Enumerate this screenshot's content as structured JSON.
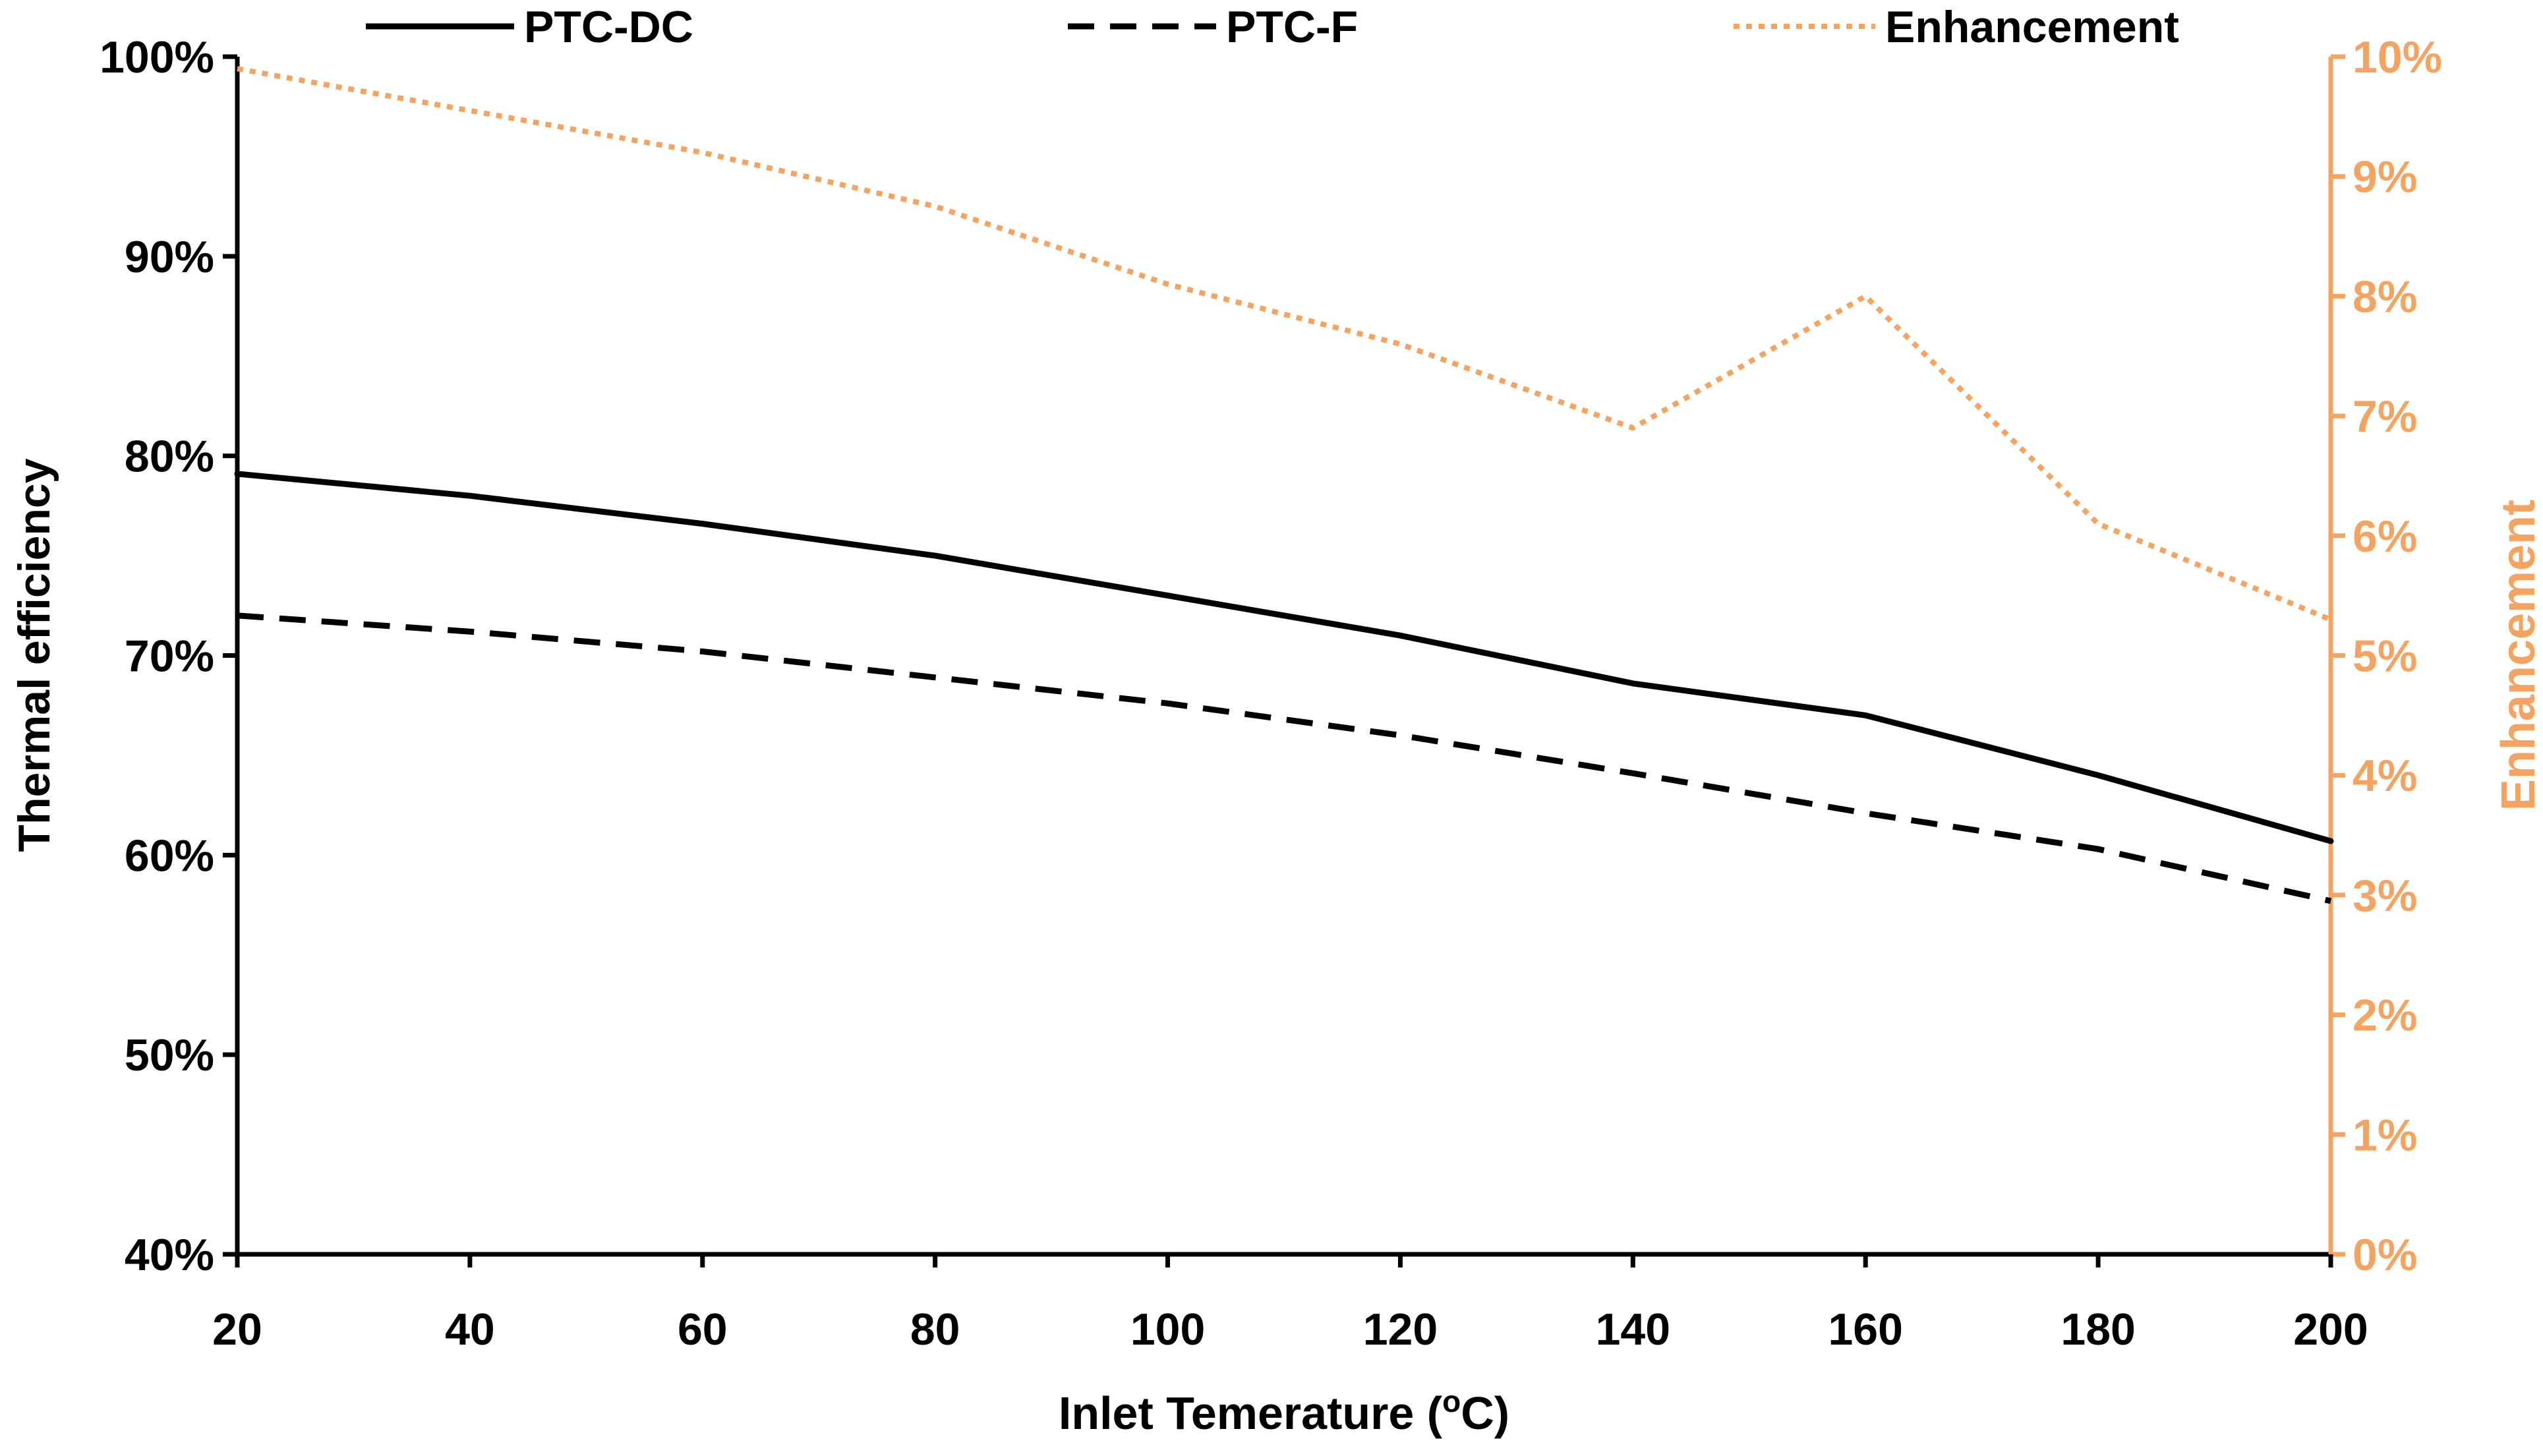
{
  "chart_data": {
    "type": "line",
    "title": "",
    "xlabel": {
      "main": "Inlet Temerature (",
      "sup": "o",
      "end": "C)"
    },
    "ylabel_left": "Thermal efficiency",
    "ylabel_right": "Enhancement",
    "x": [
      20,
      40,
      60,
      80,
      100,
      120,
      140,
      160,
      180,
      200
    ],
    "xlim": [
      20,
      200
    ],
    "xticks": [
      20,
      40,
      60,
      80,
      100,
      120,
      140,
      160,
      180,
      200
    ],
    "xtick_labels": [
      "20",
      "40",
      "60",
      "80",
      "100",
      "120",
      "140",
      "160",
      "180",
      "200"
    ],
    "ylim_left": [
      40,
      100
    ],
    "yticks_left": [
      40,
      50,
      60,
      70,
      80,
      90,
      100
    ],
    "ytick_labels_left": [
      "40%",
      "50%",
      "60%",
      "70%",
      "80%",
      "90%",
      "100%"
    ],
    "ylim_right": [
      0,
      10
    ],
    "yticks_right": [
      0,
      1,
      2,
      3,
      4,
      5,
      6,
      7,
      8,
      9,
      10
    ],
    "ytick_labels_right": [
      "0%",
      "1%",
      "2%",
      "3%",
      "4%",
      "5%",
      "6%",
      "7%",
      "8%",
      "9%",
      "10%"
    ],
    "grid": false,
    "legend_position": "top",
    "series": [
      {
        "name": "PTC-DC",
        "axis": "left",
        "style": "solid",
        "color": "#000000",
        "values": [
          79.1,
          78.0,
          76.6,
          75.0,
          73.0,
          71.0,
          68.6,
          67.0,
          64.0,
          60.7
        ]
      },
      {
        "name": "PTC-F",
        "axis": "left",
        "style": "dashed",
        "color": "#000000",
        "values": [
          72.0,
          71.2,
          70.2,
          68.9,
          67.6,
          66.0,
          64.1,
          62.1,
          60.3,
          57.7
        ]
      },
      {
        "name": "Enhancement",
        "axis": "right",
        "style": "dotted",
        "color": "#F4A460",
        "values": [
          9.9,
          9.55,
          9.2,
          8.75,
          8.1,
          7.6,
          6.9,
          8.0,
          6.1,
          5.3
        ]
      }
    ]
  }
}
